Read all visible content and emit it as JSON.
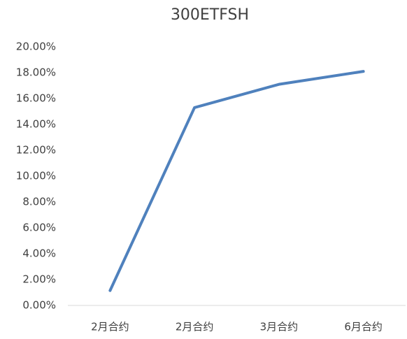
{
  "chart_data": {
    "type": "line",
    "title": "300ETFSH",
    "categories": [
      "2月合约",
      "2月合约",
      "3月合约",
      "6月合约"
    ],
    "series": [
      {
        "name": "300ETFSH",
        "color": "#4f81bd",
        "values": [
          1.15,
          15.3,
          17.1,
          18.1
        ]
      }
    ],
    "ylim": [
      0,
      20
    ],
    "yticks": [
      {
        "value": 0,
        "label": "0.00%"
      },
      {
        "value": 2,
        "label": "2.00%"
      },
      {
        "value": 4,
        "label": "4.00%"
      },
      {
        "value": 6,
        "label": "6.00%"
      },
      {
        "value": 8,
        "label": "8.00%"
      },
      {
        "value": 10,
        "label": "10.00%"
      },
      {
        "value": 12,
        "label": "12.00%"
      },
      {
        "value": 14,
        "label": "14.00%"
      },
      {
        "value": 16,
        "label": "16.00%"
      },
      {
        "value": 18,
        "label": "18.00%"
      },
      {
        "value": 20,
        "label": "20.00%"
      }
    ],
    "grid": false
  }
}
